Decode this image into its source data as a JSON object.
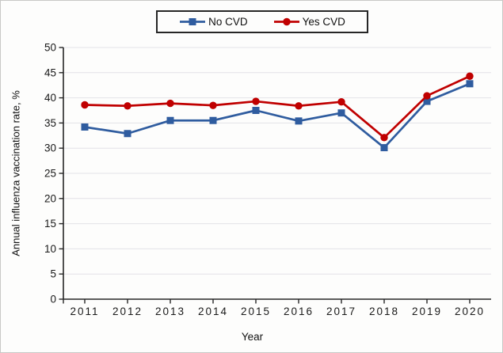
{
  "figure": {
    "background": "#fdfdfc",
    "border_color": "#c9c9c6"
  },
  "chart_data": {
    "type": "line",
    "title": "",
    "xlabel": "Year",
    "ylabel": "Annual influenza vaccination rate, %",
    "x": [
      "2011",
      "2012",
      "2013",
      "2014",
      "2015",
      "2016",
      "2017",
      "2018",
      "2019",
      "2020"
    ],
    "series": [
      {
        "name": "No CVD",
        "marker": "square",
        "color": "#2F5C9F",
        "values": [
          34.2,
          32.9,
          35.5,
          35.5,
          37.5,
          35.4,
          37.0,
          30.1,
          39.3,
          42.8
        ]
      },
      {
        "name": "Yes CVD",
        "marker": "circle",
        "color": "#C00000",
        "values": [
          38.6,
          38.4,
          38.9,
          38.5,
          39.3,
          38.4,
          39.2,
          32.1,
          40.4,
          44.3
        ]
      }
    ],
    "ylim": [
      0,
      50
    ],
    "ytick_step": 5,
    "grid": true,
    "gridline_color": "#E3E2E7",
    "axis_color": "#262626",
    "text_color": "#1A1A1A",
    "legend_position": "top-center"
  }
}
